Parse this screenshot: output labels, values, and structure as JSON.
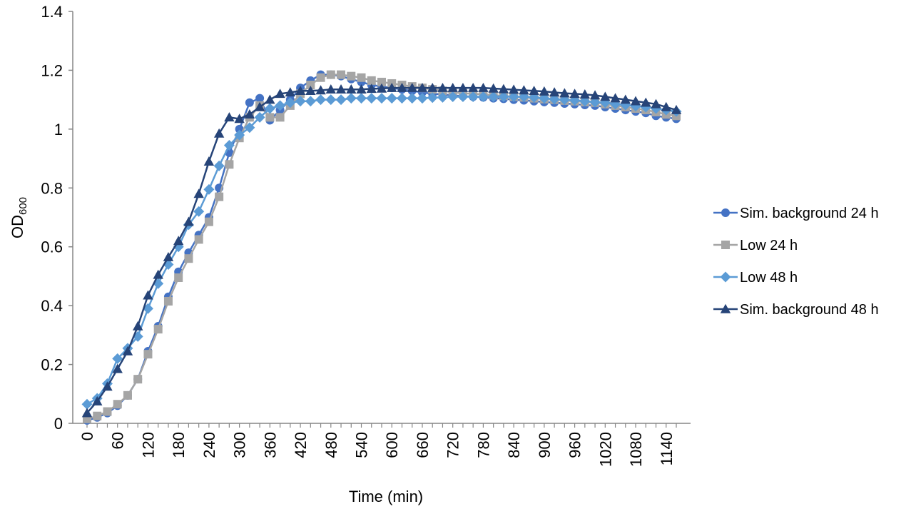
{
  "chart_data": {
    "type": "line",
    "title": "",
    "xlabel": "Time (min)",
    "ylabel": "OD",
    "ylabel_subscript": "600",
    "xlim": [
      0,
      1160
    ],
    "ylim": [
      0,
      1.4
    ],
    "x_ticks": [
      "0",
      "60",
      "120",
      "180",
      "240",
      "300",
      "360",
      "420",
      "480",
      "540",
      "600",
      "660",
      "720",
      "780",
      "840",
      "900",
      "960",
      "1020",
      "1080",
      "1140"
    ],
    "y_ticks": [
      "0",
      "0.2",
      "0.4",
      "0.6",
      "0.8",
      "1",
      "1.2",
      "1.4"
    ],
    "grid": false,
    "legend_position": "right",
    "x": [
      0,
      20,
      40,
      60,
      80,
      100,
      120,
      140,
      160,
      180,
      200,
      220,
      240,
      260,
      280,
      300,
      320,
      340,
      360,
      380,
      400,
      420,
      440,
      460,
      480,
      500,
      520,
      540,
      560,
      580,
      600,
      620,
      640,
      660,
      680,
      700,
      720,
      740,
      760,
      780,
      800,
      820,
      840,
      860,
      880,
      900,
      920,
      940,
      960,
      980,
      1000,
      1020,
      1040,
      1060,
      1080,
      1100,
      1120,
      1140,
      1160
    ],
    "series": [
      {
        "name": "Sim. background 24 h",
        "color": "#4472C4",
        "marker": "circle",
        "values": [
          0.01,
          0.02,
          0.035,
          0.06,
          0.095,
          0.15,
          0.245,
          0.33,
          0.43,
          0.515,
          0.58,
          0.64,
          0.7,
          0.8,
          0.92,
          1.0,
          1.09,
          1.105,
          1.03,
          1.065,
          1.1,
          1.14,
          1.165,
          1.185,
          1.185,
          1.18,
          1.17,
          1.16,
          1.15,
          1.145,
          1.14,
          1.135,
          1.13,
          1.125,
          1.12,
          1.118,
          1.115,
          1.112,
          1.11,
          1.108,
          1.105,
          1.103,
          1.1,
          1.098,
          1.095,
          1.092,
          1.09,
          1.087,
          1.085,
          1.082,
          1.08,
          1.075,
          1.07,
          1.065,
          1.06,
          1.055,
          1.045,
          1.04,
          1.035
        ]
      },
      {
        "name": "Low 24 h",
        "color": "#A5A5A5",
        "marker": "square",
        "values": [
          0.015,
          0.025,
          0.04,
          0.065,
          0.095,
          0.15,
          0.235,
          0.32,
          0.415,
          0.495,
          0.56,
          0.625,
          0.685,
          0.77,
          0.88,
          0.97,
          1.04,
          1.08,
          1.04,
          1.04,
          1.08,
          1.12,
          1.15,
          1.175,
          1.185,
          1.185,
          1.18,
          1.175,
          1.165,
          1.16,
          1.155,
          1.15,
          1.145,
          1.14,
          1.135,
          1.13,
          1.125,
          1.122,
          1.12,
          1.118,
          1.115,
          1.113,
          1.11,
          1.108,
          1.105,
          1.102,
          1.1,
          1.097,
          1.095,
          1.092,
          1.09,
          1.085,
          1.08,
          1.075,
          1.07,
          1.065,
          1.058,
          1.05,
          1.045
        ]
      },
      {
        "name": "Low 48 h",
        "color": "#5B9BD5",
        "marker": "diamond",
        "values": [
          0.065,
          0.085,
          0.135,
          0.22,
          0.255,
          0.295,
          0.39,
          0.475,
          0.54,
          0.6,
          0.675,
          0.72,
          0.795,
          0.875,
          0.945,
          0.98,
          1.005,
          1.04,
          1.07,
          1.08,
          1.09,
          1.095,
          1.095,
          1.1,
          1.1,
          1.1,
          1.105,
          1.105,
          1.105,
          1.105,
          1.105,
          1.105,
          1.105,
          1.105,
          1.107,
          1.108,
          1.11,
          1.11,
          1.11,
          1.11,
          1.11,
          1.11,
          1.11,
          1.11,
          1.108,
          1.105,
          1.102,
          1.1,
          1.098,
          1.095,
          1.092,
          1.09,
          1.085,
          1.082,
          1.078,
          1.075,
          1.07,
          1.065,
          1.06
        ]
      },
      {
        "name": "Sim. background 48 h",
        "color": "#264478",
        "marker": "triangle",
        "values": [
          0.035,
          0.075,
          0.125,
          0.185,
          0.245,
          0.33,
          0.435,
          0.505,
          0.565,
          0.62,
          0.685,
          0.78,
          0.89,
          0.985,
          1.04,
          1.035,
          1.05,
          1.075,
          1.1,
          1.12,
          1.125,
          1.13,
          1.13,
          1.132,
          1.135,
          1.135,
          1.135,
          1.135,
          1.137,
          1.138,
          1.14,
          1.14,
          1.14,
          1.14,
          1.14,
          1.14,
          1.14,
          1.14,
          1.14,
          1.14,
          1.138,
          1.136,
          1.134,
          1.132,
          1.13,
          1.128,
          1.125,
          1.122,
          1.12,
          1.118,
          1.115,
          1.11,
          1.105,
          1.1,
          1.095,
          1.09,
          1.085,
          1.075,
          1.065
        ]
      }
    ]
  }
}
